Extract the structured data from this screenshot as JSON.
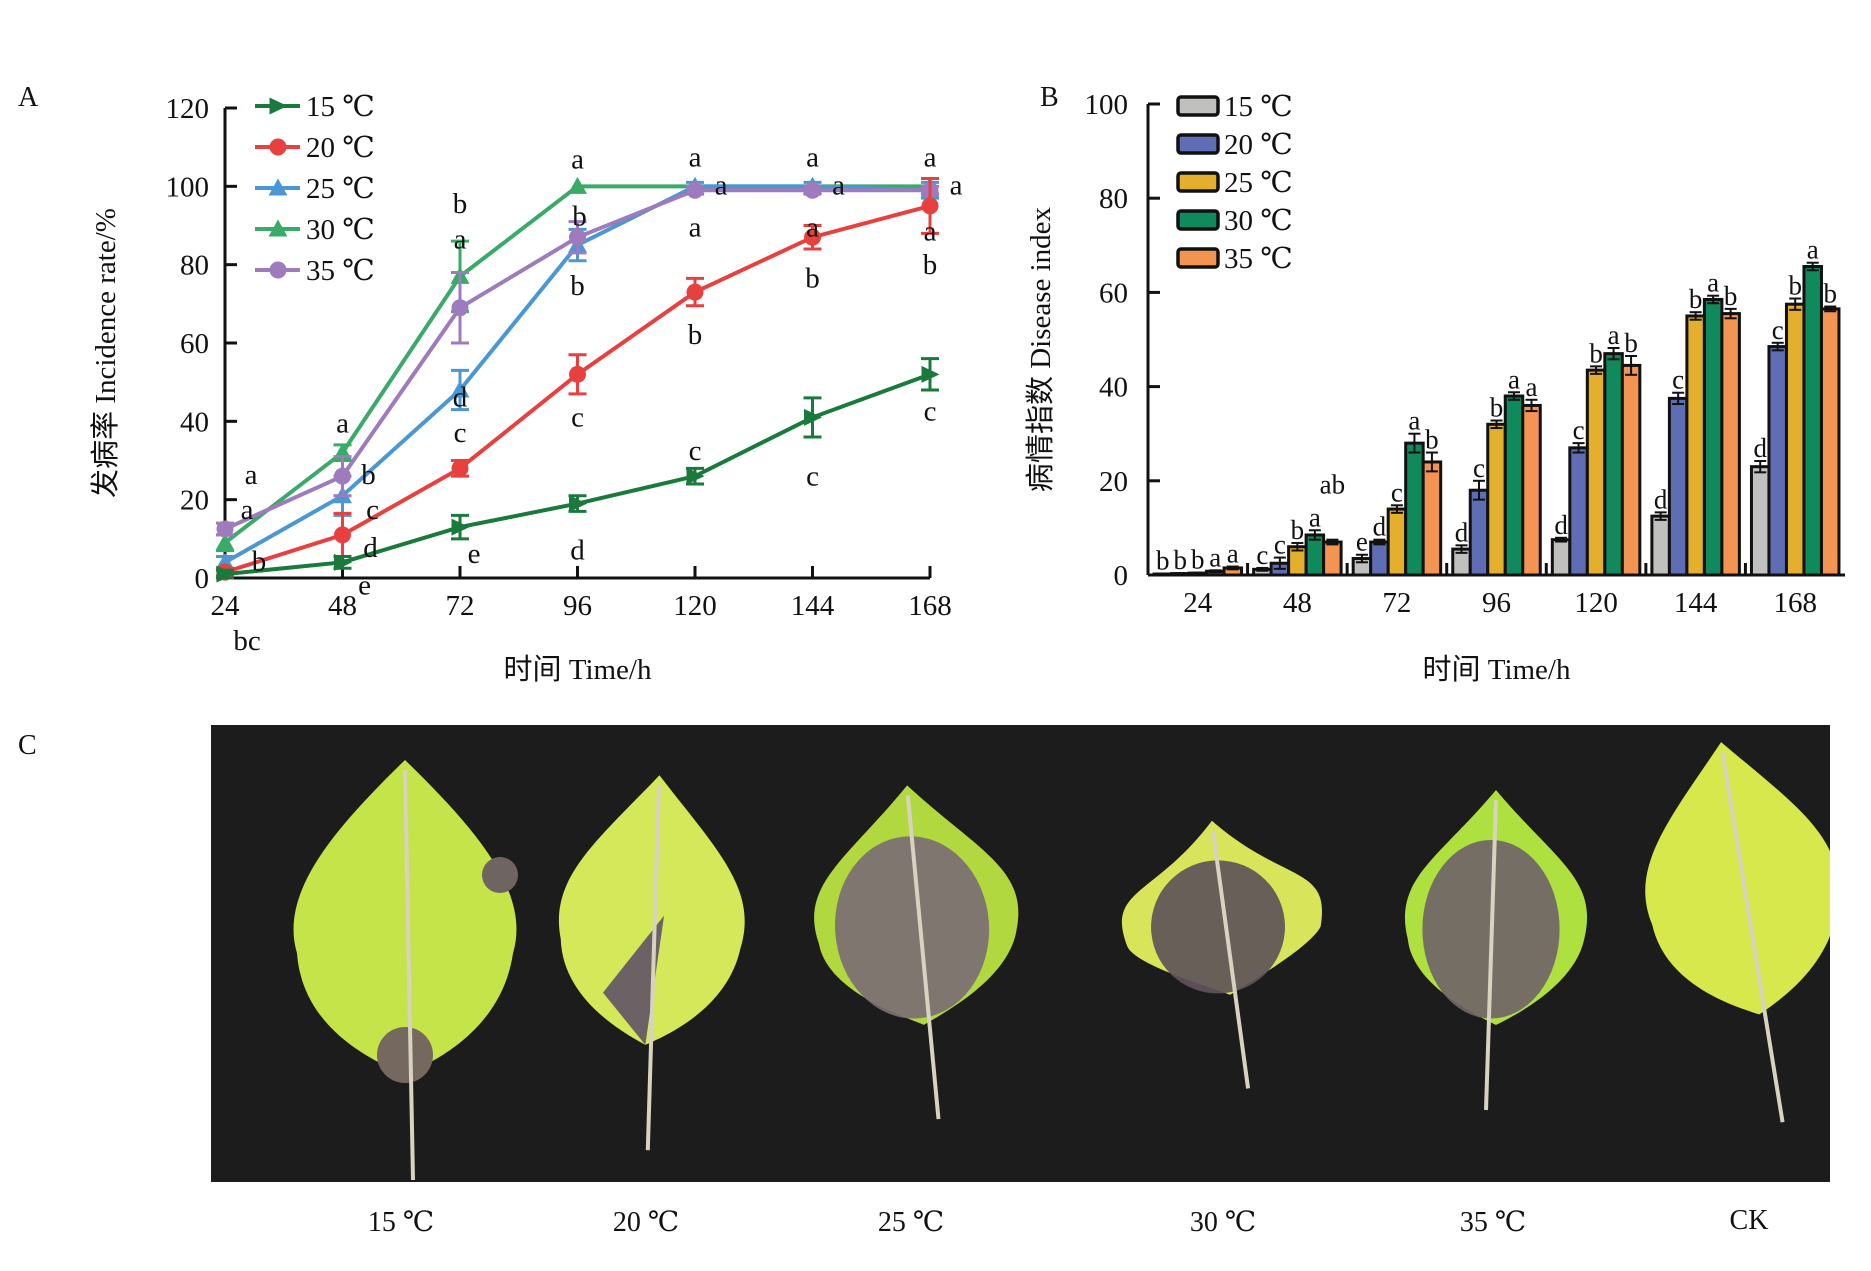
{
  "panels": {
    "a": "A",
    "b": "B",
    "c": "C"
  },
  "chart_data": [
    {
      "type": "line",
      "panel": "A",
      "xlabel": "时间 Time/h",
      "ylabel": "发病率 Incidence rate/%",
      "x": [
        24,
        48,
        72,
        96,
        120,
        144,
        168
      ],
      "xticks": [
        "24",
        "48",
        "72",
        "96",
        "120",
        "144",
        "168"
      ],
      "ylim": [
        0,
        120
      ],
      "yticks": [
        "0",
        "20",
        "40",
        "60",
        "80",
        "100",
        "120"
      ],
      "legend_position": "top-left",
      "grid": false,
      "series": [
        {
          "name": "15 ℃",
          "color": "#1a7a3c",
          "marker": "triangle-right",
          "values": [
            1,
            4,
            13,
            19,
            26,
            41,
            52
          ],
          "errors": [
            1,
            1.5,
            3,
            2,
            2,
            5,
            4
          ],
          "letters": [
            "",
            "e",
            "e",
            "d",
            "c",
            "c",
            "c"
          ]
        },
        {
          "name": "20 ℃",
          "color": "#e8403f",
          "marker": "circle",
          "values": [
            1.5,
            11,
            28,
            52,
            73,
            87,
            95
          ],
          "errors": [
            1,
            5.5,
            2,
            5,
            3.5,
            3,
            7
          ],
          "letters": [
            "bc",
            "d",
            "d",
            "c",
            "b",
            "b",
            "b"
          ]
        },
        {
          "name": "25 ℃",
          "color": "#4a97d4",
          "marker": "triangle-up",
          "values": [
            4,
            21,
            48,
            85,
            100,
            100,
            99
          ],
          "errors": [
            1.5,
            5,
            5,
            4,
            1,
            1,
            2
          ],
          "letters": [
            "b",
            "c",
            "c",
            "b",
            "a",
            "a",
            "a"
          ]
        },
        {
          "name": "30 ℃",
          "color": "#3aaa68",
          "marker": "triangle-up",
          "values": [
            9,
            32,
            77,
            100,
            100,
            100,
            100
          ],
          "errors": [
            2,
            2,
            9,
            0,
            0,
            0,
            0
          ],
          "letters": [
            "a",
            "a",
            "a",
            "a",
            "a",
            "a",
            "a"
          ]
        },
        {
          "name": "35 ℃",
          "color": "#9d7bbc",
          "marker": "circle",
          "values": [
            12.5,
            26,
            69,
            87,
            99,
            99,
            99
          ],
          "errors": [
            1.5,
            5,
            9,
            4,
            1,
            1,
            1
          ],
          "letters": [
            "a",
            "b",
            "b",
            "b",
            "a",
            "a",
            "a"
          ]
        }
      ]
    },
    {
      "type": "bar",
      "panel": "B",
      "xlabel": "时间 Time/h",
      "ylabel": "病情指数 Disease index",
      "categories": [
        "24",
        "48",
        "72",
        "96",
        "120",
        "144",
        "168"
      ],
      "ylim": [
        0,
        100
      ],
      "yticks": [
        "0",
        "20",
        "40",
        "60",
        "80",
        "100"
      ],
      "legend_position": "top-left",
      "grid": false,
      "series": [
        {
          "name": "15 ℃",
          "color": "#c0c0bf",
          "values": [
            0.2,
            1.2,
            3.5,
            5.5,
            7.5,
            12.5,
            23
          ],
          "errors": [
            0.1,
            0.3,
            0.8,
            0.8,
            0.4,
            0.8,
            1.2
          ],
          "letters": [
            "b",
            "c",
            "e",
            "d",
            "d",
            "d",
            "d"
          ]
        },
        {
          "name": "20 ℃",
          "color": "#5f6db5",
          "values": [
            0.3,
            2.5,
            7,
            18,
            27,
            37.5,
            48.5
          ],
          "errors": [
            0.1,
            1.2,
            0.5,
            2,
            1,
            1.2,
            0.8
          ],
          "letters": [
            "b",
            "c",
            "d",
            "c",
            "c",
            "c",
            "c"
          ]
        },
        {
          "name": "25 ℃",
          "color": "#e3af2d",
          "values": [
            0.4,
            6,
            14,
            32,
            43.5,
            55,
            57.5
          ],
          "errors": [
            0.1,
            0.8,
            0.8,
            0.8,
            0.8,
            0.8,
            1.2
          ],
          "letters": [
            "b",
            "b",
            "c",
            "b",
            "b",
            "b",
            "b"
          ]
        },
        {
          "name": "30 ℃",
          "color": "#108a5c",
          "values": [
            0.8,
            8.5,
            28,
            38,
            47,
            58.5,
            65.5
          ],
          "errors": [
            0.2,
            1,
            2,
            0.8,
            1.2,
            0.8,
            0.8
          ],
          "letters": [
            "a",
            "a",
            "a",
            "a",
            "a",
            "a",
            "a"
          ]
        },
        {
          "name": "35 ℃",
          "color": "#f39452",
          "values": [
            1.5,
            7,
            24,
            36,
            44.5,
            55.5,
            56.5
          ],
          "errors": [
            0.3,
            0.5,
            2,
            1.2,
            2,
            1,
            0.5
          ],
          "letters": [
            "a",
            "ab",
            "b",
            "a",
            "b",
            "b",
            "b"
          ]
        }
      ]
    }
  ],
  "photo": {
    "leaves": [
      {
        "label": "15 ℃"
      },
      {
        "label": "20 ℃"
      },
      {
        "label": "25 ℃"
      },
      {
        "label": "30 ℃"
      },
      {
        "label": "35 ℃"
      },
      {
        "label": "CK"
      }
    ]
  }
}
